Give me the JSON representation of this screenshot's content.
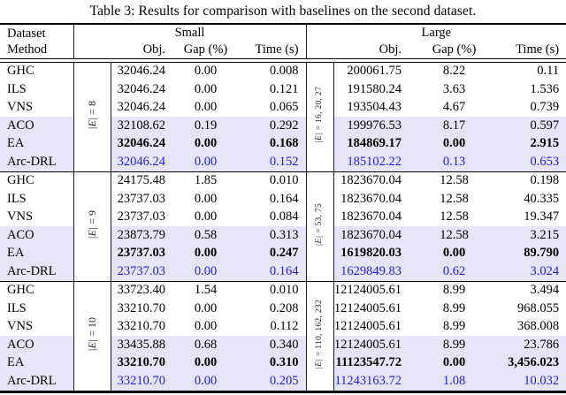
{
  "caption": "Table 3: Results for comparison with baselines on the second dataset.",
  "header": {
    "dataset": "Dataset",
    "method": "Method",
    "group_small": "Small",
    "group_large": "Large",
    "obj": "Obj.",
    "gap": "Gap (%)",
    "time": "Time (s)"
  },
  "colors": {
    "row_highlight": "#e5e5f7",
    "accent_blue": "#1f1fd6",
    "rule_black": "#000000"
  },
  "blocks": [
    {
      "edge_small": {
        "sym": "|E|",
        "rest": " = 8"
      },
      "edge_large": {
        "sym": "|E|",
        "rest": " = 16, 20, 27"
      },
      "rows": [
        {
          "method": "GHC",
          "s_obj": "32046.24",
          "s_gap": "0.00",
          "s_time": "0.008",
          "l_obj": "200061.75",
          "l_gap": "8.22",
          "l_time": "0.11",
          "style": "plain"
        },
        {
          "method": "ILS",
          "s_obj": "32046.24",
          "s_gap": "0.00",
          "s_time": "0.121",
          "l_obj": "191580.24",
          "l_gap": "3.63",
          "l_time": "1.536",
          "style": "plain"
        },
        {
          "method": "VNS",
          "s_obj": "32046.24",
          "s_gap": "0.00",
          "s_time": "0.065",
          "l_obj": "193504.43",
          "l_gap": "4.67",
          "l_time": "0.739",
          "style": "plain"
        },
        {
          "method": "ACO",
          "s_obj": "32108.62",
          "s_gap": "0.19",
          "s_time": "0.292",
          "l_obj": "199976.53",
          "l_gap": "8.17",
          "l_time": "0.597",
          "style": "hl"
        },
        {
          "method": "EA",
          "s_obj": "32046.24",
          "s_gap": "0.00",
          "s_time": "0.168",
          "l_obj": "184869.17",
          "l_gap": "0.00",
          "l_time": "2.915",
          "style": "hl-bold"
        },
        {
          "method": "Arc-DRL",
          "s_obj": "32046.24",
          "s_gap": "0.00",
          "s_time": "0.152",
          "l_obj": "185102.22",
          "l_gap": "0.13",
          "l_time": "0.653",
          "style": "hl-blue"
        }
      ]
    },
    {
      "edge_small": {
        "sym": "|E|",
        "rest": " = 9"
      },
      "edge_large": {
        "sym": "|E|",
        "rest": " = 53, 75"
      },
      "rows": [
        {
          "method": "GHC",
          "s_obj": "24175.48",
          "s_gap": "1.85",
          "s_time": "0.010",
          "l_obj": "1823670.04",
          "l_gap": "12.58",
          "l_time": "0.198",
          "style": "plain"
        },
        {
          "method": "ILS",
          "s_obj": "23737.03",
          "s_gap": "0.00",
          "s_time": "0.164",
          "l_obj": "1823670.04",
          "l_gap": "12.58",
          "l_time": "40.335",
          "style": "plain"
        },
        {
          "method": "VNS",
          "s_obj": "23737.03",
          "s_gap": "0.00",
          "s_time": "0.084",
          "l_obj": "1823670.04",
          "l_gap": "12.58",
          "l_time": "19.347",
          "style": "plain"
        },
        {
          "method": "ACO",
          "s_obj": "23873.79",
          "s_gap": "0.58",
          "s_time": "0.313",
          "l_obj": "1823670.04",
          "l_gap": "12.58",
          "l_time": "3.215",
          "style": "hl"
        },
        {
          "method": "EA",
          "s_obj": "23737.03",
          "s_gap": "0.00",
          "s_time": "0.247",
          "l_obj": "1619820.03",
          "l_gap": "0.00",
          "l_time": "89.790",
          "style": "hl-bold"
        },
        {
          "method": "Arc-DRL",
          "s_obj": "23737.03",
          "s_gap": "0.00",
          "s_time": "0.164",
          "l_obj": "1629849.83",
          "l_gap": "0.62",
          "l_time": "3.024",
          "style": "hl-blue"
        }
      ]
    },
    {
      "edge_small": {
        "sym": "|E|",
        "rest": " = 10"
      },
      "edge_large": {
        "sym": "|E|",
        "rest": " = 110, 162, 232"
      },
      "rows": [
        {
          "method": "GHC",
          "s_obj": "33723.40",
          "s_gap": "1.54",
          "s_time": "0.010",
          "l_obj": "12124005.61",
          "l_gap": "8.99",
          "l_time": "3.494",
          "style": "plain"
        },
        {
          "method": "ILS",
          "s_obj": "33210.70",
          "s_gap": "0.00",
          "s_time": "0.208",
          "l_obj": "12124005.61",
          "l_gap": "8.99",
          "l_time": "968.055",
          "style": "plain"
        },
        {
          "method": "VNS",
          "s_obj": "33210.70",
          "s_gap": "0.00",
          "s_time": "0.112",
          "l_obj": "12124005.61",
          "l_gap": "8.99",
          "l_time": "368.008",
          "style": "plain"
        },
        {
          "method": "ACO",
          "s_obj": "33435.88",
          "s_gap": "0.68",
          "s_time": "0.340",
          "l_obj": "12124005.61",
          "l_gap": "8.99",
          "l_time": "23.786",
          "style": "hl"
        },
        {
          "method": "EA",
          "s_obj": "33210.70",
          "s_gap": "0.00",
          "s_time": "0.310",
          "l_obj": "11123547.72",
          "l_gap": "0.00",
          "l_time": "3,456.023",
          "style": "hl-bold"
        },
        {
          "method": "Arc-DRL",
          "s_obj": "33210.70",
          "s_gap": "0.00",
          "s_time": "0.205",
          "l_obj": "11243163.72",
          "l_gap": "1.08",
          "l_time": "10.032",
          "style": "hl-blue"
        }
      ]
    }
  ]
}
